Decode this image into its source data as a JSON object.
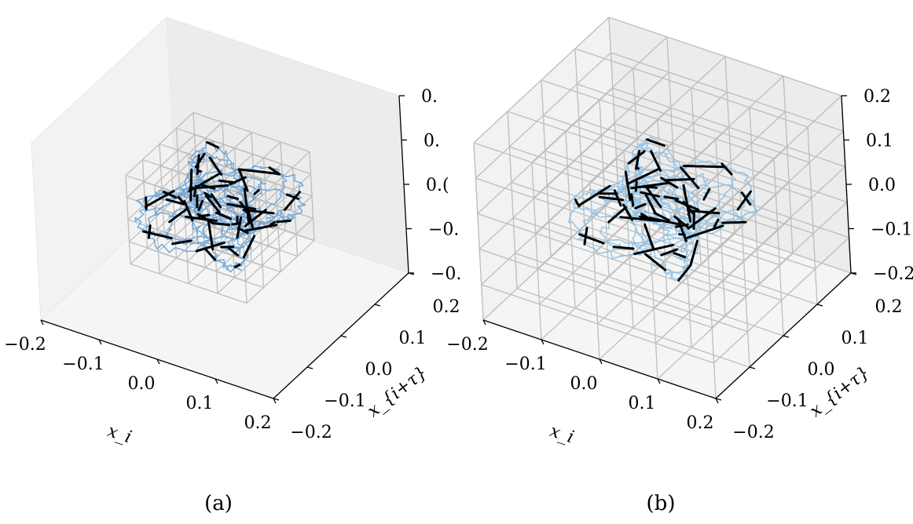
{
  "chart_data": [
    {
      "type": "3d-line",
      "caption": "(a)",
      "xlabel": "x_i",
      "ylabel": "x_{i+τ}",
      "zlabel": "",
      "x_ticks": [
        "−0.2",
        "−0.1",
        "0.0",
        "0.1",
        "0.2"
      ],
      "y_ticks": [
        "−0.2",
        "−0.1",
        "0.0",
        "0.1",
        "0.2"
      ],
      "z_ticks": [
        "−0.",
        "−0.",
        "0.(",
        "0.",
        "0."
      ],
      "xlim": [
        -0.2,
        0.2
      ],
      "ylim": [
        -0.2,
        0.2
      ],
      "zlim": [
        -0.2,
        0.2
      ],
      "trajectory_color": "#5b9bd5",
      "arrow_color": "#000000",
      "grid_lines_color": "#b0b0b0",
      "embedding_grid": {
        "nx": 5,
        "ny": 5,
        "nz": 5,
        "extent": [
          -0.1,
          0.1
        ]
      },
      "trajectory_radius": 0.09
    },
    {
      "type": "3d-line",
      "caption": "(b)",
      "xlabel": "x_i",
      "ylabel": "x_{i+τ}",
      "zlabel": "",
      "x_ticks": [
        "−0.2",
        "−0.1",
        "0.0",
        "0.1",
        "0.2"
      ],
      "y_ticks": [
        "−0.2",
        "−0.1",
        "0.0",
        "0.1",
        "0.2"
      ],
      "z_ticks": [
        "−0.2",
        "−0.1",
        "0.0",
        "0.1",
        "0.2"
      ],
      "xlim": [
        -0.2,
        0.2
      ],
      "ylim": [
        -0.2,
        0.2
      ],
      "zlim": [
        -0.2,
        0.2
      ],
      "trajectory_color": "#7fbde6",
      "arrow_color": "#000000",
      "grid_lines_color": "#b0b0b0",
      "embedding_grid": {
        "nx": 5,
        "ny": 5,
        "nz": 6,
        "extent": [
          -0.2,
          0.2
        ]
      },
      "trajectory_radius": 0.1
    }
  ]
}
